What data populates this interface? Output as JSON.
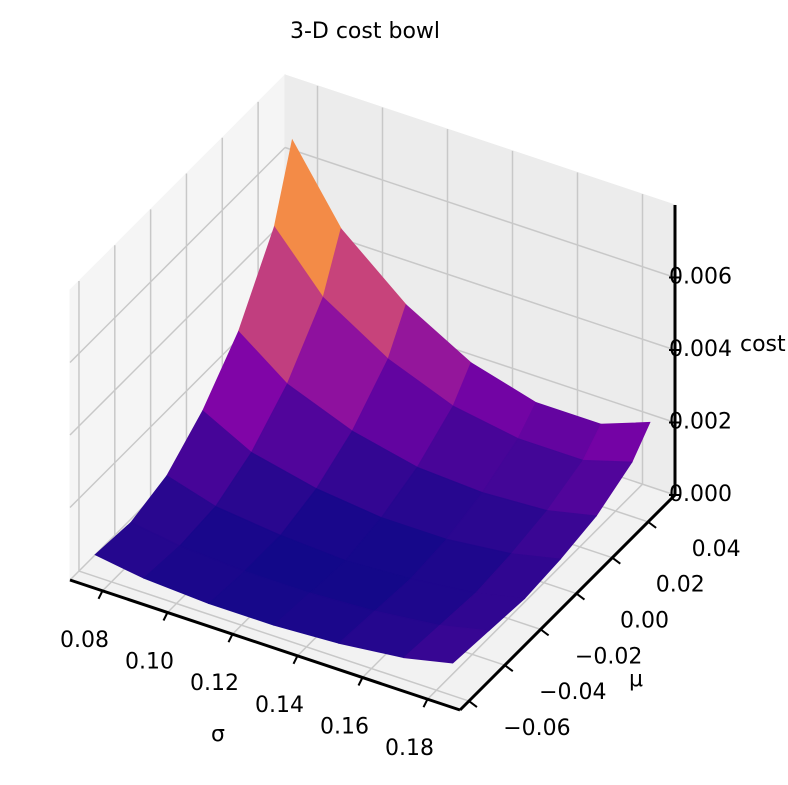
{
  "chart_data": {
    "type": "surface",
    "title": "3-D cost bowl",
    "xlabel": "σ",
    "ylabel": "μ",
    "zlabel": "cost",
    "x": [
      0.075,
      0.09,
      0.11,
      0.13,
      0.15,
      0.17,
      0.185
    ],
    "y": [
      -0.06,
      -0.04,
      -0.02,
      0.0,
      0.02,
      0.04,
      0.05
    ],
    "z": [
      [
        0.0006,
        0.0004,
        0.0003,
        0.0003,
        0.0004,
        0.0006,
        0.0009
      ],
      [
        0.0005,
        0.0003,
        0.0002,
        0.0002,
        0.0003,
        0.0005,
        0.0008
      ],
      [
        0.0008,
        0.0004,
        0.0002,
        0.0001,
        0.0002,
        0.0004,
        0.0007
      ],
      [
        0.0016,
        0.0009,
        0.0005,
        0.0003,
        0.0003,
        0.0005,
        0.0008
      ],
      [
        0.0028,
        0.0018,
        0.0011,
        0.0007,
        0.0006,
        0.0007,
        0.001
      ],
      [
        0.0047,
        0.0032,
        0.0021,
        0.0014,
        0.0011,
        0.0011,
        0.0015
      ],
      [
        0.0066,
        0.0046,
        0.0031,
        0.0021,
        0.0016,
        0.0016,
        0.0021
      ]
    ],
    "colormap": "plasma",
    "xlim": [
      0.07,
      0.19
    ],
    "ylim": [
      -0.065,
      0.055
    ],
    "zlim": [
      0,
      0.008
    ],
    "xticks": [
      0.08,
      {
        "value": 0.1,
        "label": "0.10"
      },
      0.12,
      0.14,
      0.16,
      0.18
    ],
    "yticks": [
      {
        "value": -0.06,
        "label": "−0.06"
      },
      {
        "value": -0.04,
        "label": "−0.04"
      },
      {
        "value": -0.02,
        "label": "−0.02"
      },
      {
        "value": 0,
        "label": "0.00"
      },
      0.02,
      0.04
    ],
    "zticks": [
      {
        "value": 0,
        "label": "0.000"
      },
      0.002,
      0.004,
      0.006
    ],
    "grid": true
  }
}
